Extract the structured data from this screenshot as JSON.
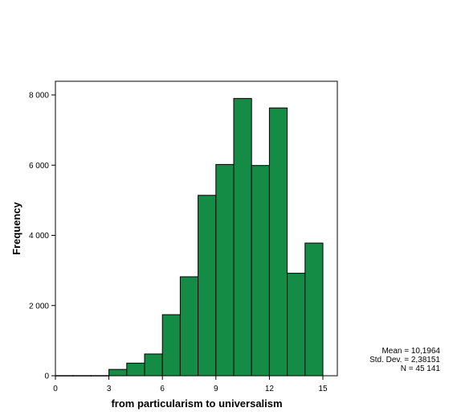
{
  "chart_data": {
    "type": "bar",
    "xlabel": "from particularism to universalism",
    "ylabel": "Frequency",
    "xlim": [
      0,
      16
    ],
    "ylim": [
      0,
      8500
    ],
    "x_ticks": [
      0,
      3,
      6,
      9,
      12,
      15
    ],
    "y_ticks": [
      0,
      2000,
      4000,
      6000,
      8000
    ],
    "y_tick_labels": [
      "0",
      "2 000",
      "4 000",
      "6 000",
      "8 000"
    ],
    "bar_color": "#158c45",
    "bins": [
      {
        "start": 0,
        "end": 1,
        "value": 5
      },
      {
        "start": 1,
        "end": 2,
        "value": 5
      },
      {
        "start": 2,
        "end": 3,
        "value": 5
      },
      {
        "start": 3,
        "end": 4,
        "value": 180
      },
      {
        "start": 4,
        "end": 5,
        "value": 360
      },
      {
        "start": 5,
        "end": 6,
        "value": 620
      },
      {
        "start": 6,
        "end": 7,
        "value": 1740
      },
      {
        "start": 7,
        "end": 8,
        "value": 2820
      },
      {
        "start": 8,
        "end": 9,
        "value": 5140
      },
      {
        "start": 9,
        "end": 10,
        "value": 6020
      },
      {
        "start": 10,
        "end": 11,
        "value": 7900
      },
      {
        "start": 11,
        "end": 12,
        "value": 5990
      },
      {
        "start": 12,
        "end": 13,
        "value": 7630
      },
      {
        "start": 13,
        "end": 14,
        "value": 2920
      },
      {
        "start": 14,
        "end": 15,
        "value": 3780
      }
    ],
    "stats": {
      "mean": "Mean = 10,1964",
      "std_dev": "Std. Dev. = 2,38151",
      "n": "N = 45 141"
    }
  }
}
